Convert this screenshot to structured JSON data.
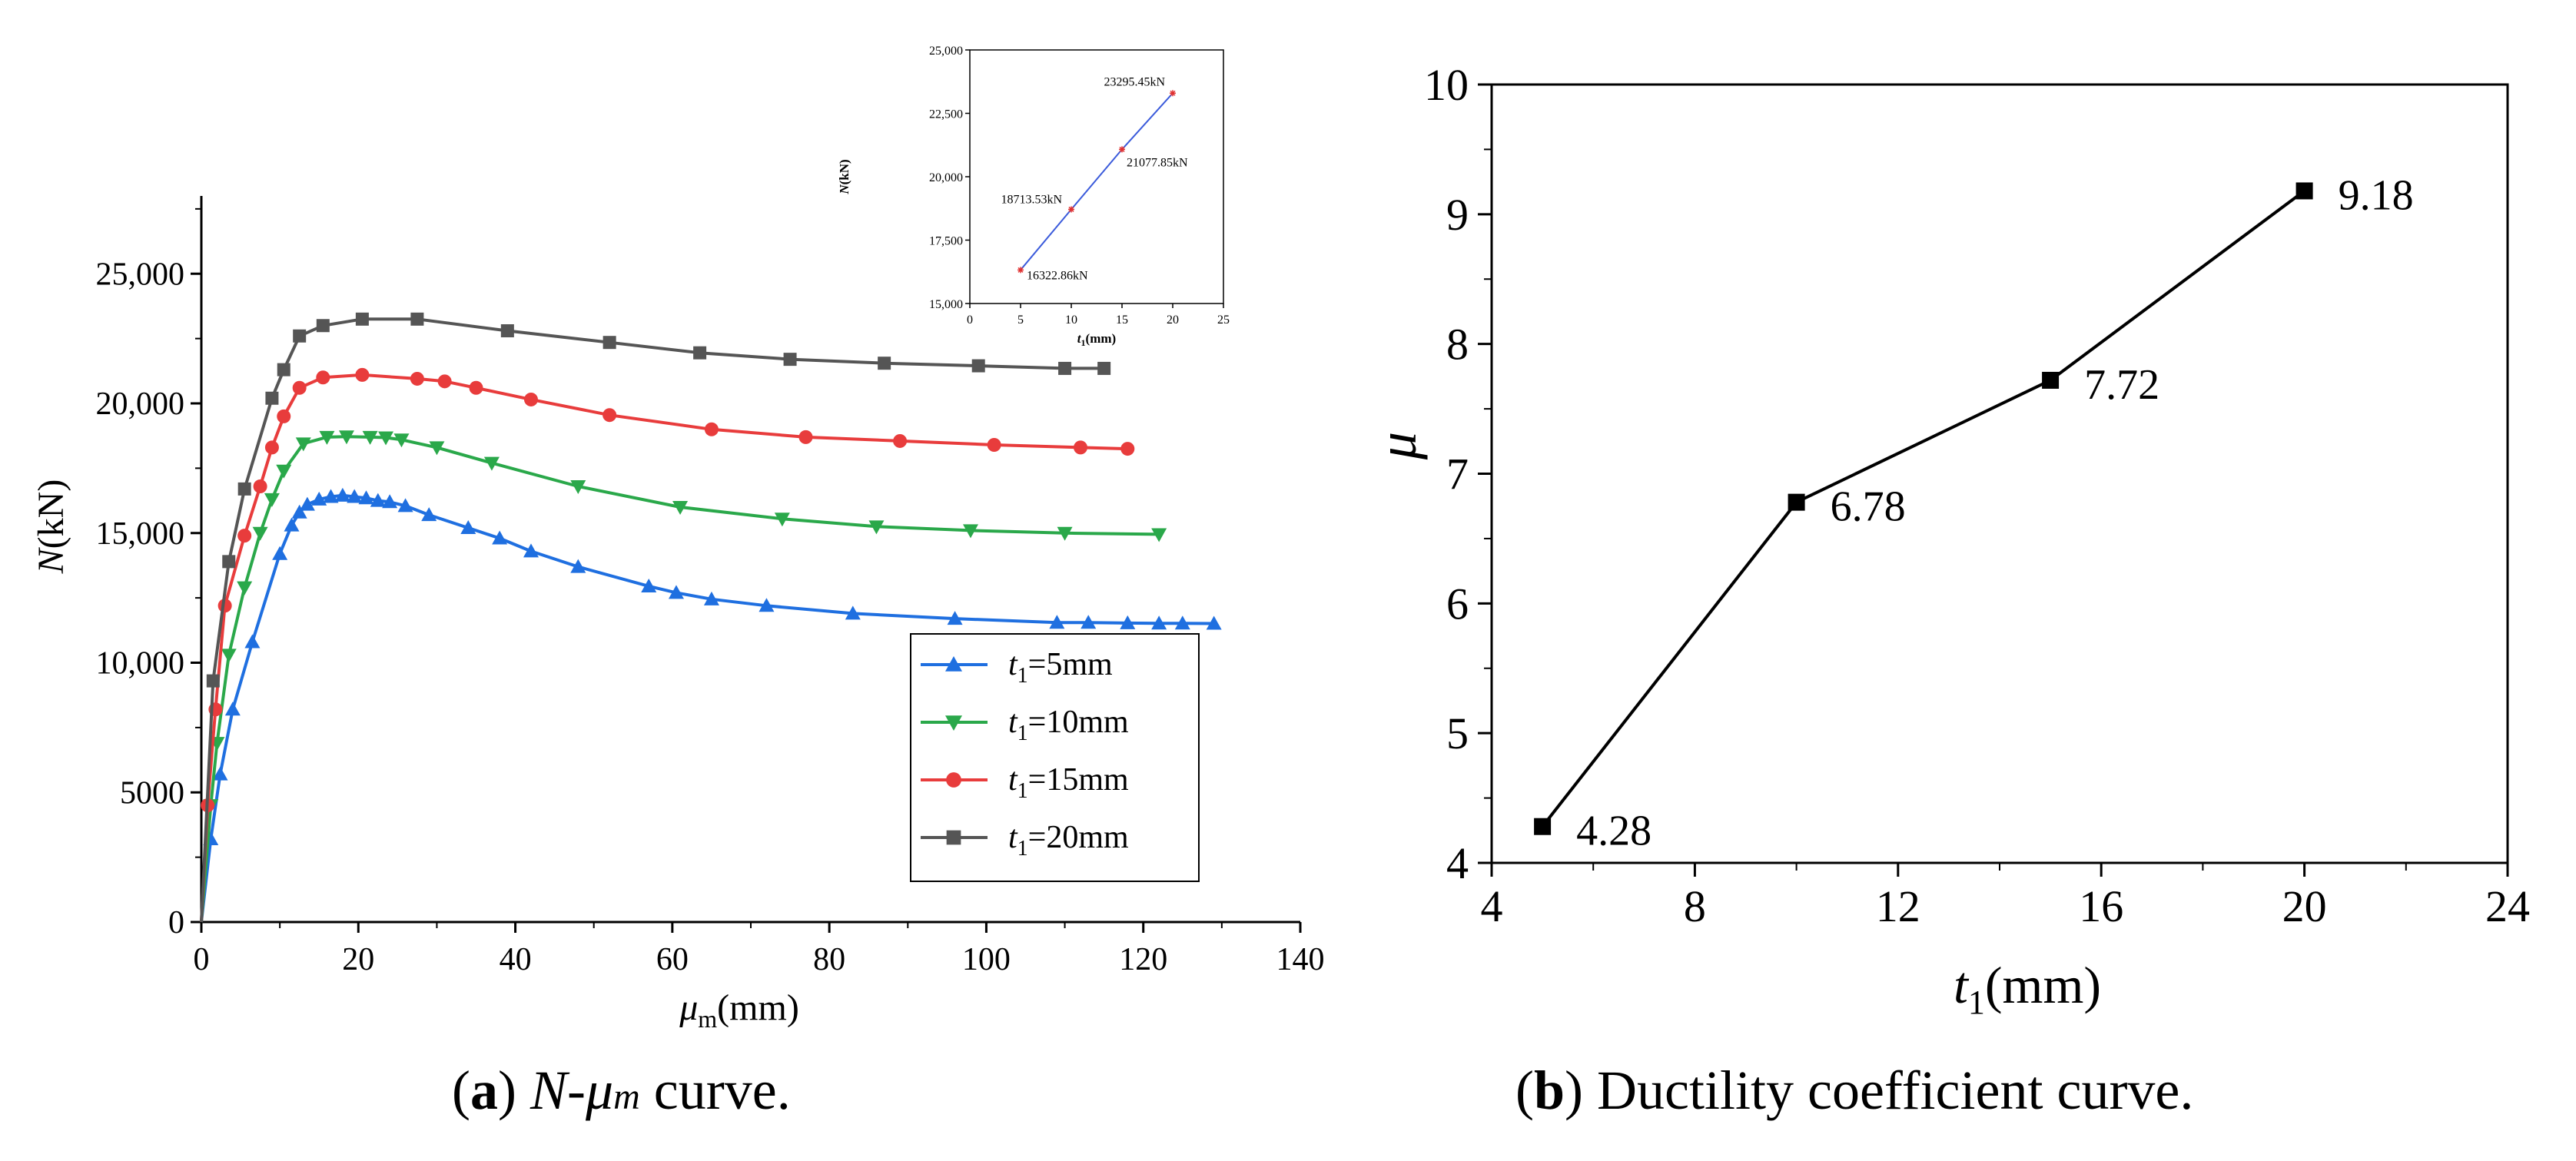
{
  "chart_data": [
    {
      "id": "a",
      "type": "line",
      "title": "",
      "xlabel_main": "μ",
      "xlabel_sub": "m",
      "xlabel_unit": "(mm)",
      "ylabel_main": "N",
      "ylabel_unit": "(kN)",
      "xlim": [
        0,
        140
      ],
      "ylim": [
        0,
        28000
      ],
      "xticks": [
        "0",
        "20",
        "40",
        "60",
        "80",
        "100",
        "120",
        "140"
      ],
      "xtick_values": [
        0,
        20,
        40,
        60,
        80,
        100,
        120,
        140
      ],
      "yticks": [
        "0",
        "5000",
        "10,000",
        "15,000",
        "20,000",
        "25,000"
      ],
      "ytick_values": [
        0,
        5000,
        10000,
        15000,
        20000,
        25000
      ],
      "legend_position": "lower-right",
      "series": [
        {
          "name": "t1=5mm",
          "legend_main": "t",
          "legend_sub": "1",
          "legend_rest": "=5mm",
          "color": "#1f6fe0",
          "marker": "triangle-up",
          "points": [
            [
              0,
              0
            ],
            [
              1.2,
              3200
            ],
            [
              2.4,
              5700
            ],
            [
              4,
              8200
            ],
            [
              6.5,
              10800
            ],
            [
              10,
              14200
            ],
            [
              11.5,
              15300
            ],
            [
              12.5,
              15800
            ],
            [
              13.5,
              16100
            ],
            [
              15,
              16300
            ],
            [
              16.5,
              16400
            ],
            [
              18,
              16450
            ],
            [
              19.5,
              16400
            ],
            [
              21,
              16350
            ],
            [
              22.5,
              16250
            ],
            [
              24,
              16200
            ],
            [
              26,
              16050
            ],
            [
              29,
              15700
            ],
            [
              34,
              15200
            ],
            [
              38,
              14800
            ],
            [
              42,
              14300
            ],
            [
              48,
              13700
            ],
            [
              57,
              12950
            ],
            [
              60.5,
              12700
            ],
            [
              65,
              12450
            ],
            [
              72,
              12200
            ],
            [
              83,
              11900
            ],
            [
              96,
              11700
            ],
            [
              109,
              11550
            ],
            [
              113,
              11550
            ],
            [
              118,
              11530
            ],
            [
              122,
              11520
            ],
            [
              125,
              11520
            ],
            [
              129,
              11510
            ]
          ]
        },
        {
          "name": "t1=10mm",
          "legend_main": "t",
          "legend_sub": "1",
          "legend_rest": "=10mm",
          "color": "#2aa84a",
          "marker": "triangle-down",
          "points": [
            [
              0,
              0
            ],
            [
              1.2,
              4500
            ],
            [
              2,
              6900
            ],
            [
              3.5,
              10300
            ],
            [
              5.5,
              12900
            ],
            [
              7.5,
              15000
            ],
            [
              9,
              16300
            ],
            [
              10.5,
              17400
            ],
            [
              13,
              18450
            ],
            [
              16,
              18700
            ],
            [
              18.5,
              18720
            ],
            [
              21.5,
              18700
            ],
            [
              23.5,
              18680
            ],
            [
              25.5,
              18600
            ],
            [
              30,
              18300
            ],
            [
              37,
              17700
            ],
            [
              48,
              16800
            ],
            [
              61,
              16000
            ],
            [
              74,
              15550
            ],
            [
              86,
              15250
            ],
            [
              98,
              15100
            ],
            [
              110,
              15000
            ],
            [
              122,
              14950
            ]
          ]
        },
        {
          "name": "t1=15mm",
          "legend_main": "t",
          "legend_sub": "1",
          "legend_rest": "=15mm",
          "color": "#e83c3c",
          "marker": "circle",
          "points": [
            [
              0,
              0
            ],
            [
              0.8,
              4500
            ],
            [
              1.8,
              8200
            ],
            [
              3,
              12200
            ],
            [
              5.5,
              14900
            ],
            [
              7.5,
              16800
            ],
            [
              9,
              18300
            ],
            [
              10.5,
              19500
            ],
            [
              12.5,
              20600
            ],
            [
              15.5,
              21000
            ],
            [
              20.5,
              21100
            ],
            [
              27.5,
              20950
            ],
            [
              31,
              20850
            ],
            [
              35,
              20600
            ],
            [
              42,
              20150
            ],
            [
              52,
              19550
            ],
            [
              65,
              19000
            ],
            [
              77,
              18700
            ],
            [
              89,
              18550
            ],
            [
              101,
              18400
            ],
            [
              112,
              18300
            ],
            [
              118,
              18250
            ]
          ]
        },
        {
          "name": "t1=20mm",
          "legend_main": "t",
          "legend_sub": "1",
          "legend_rest": "=20mm",
          "color": "#555555",
          "marker": "square",
          "points": [
            [
              0,
              0
            ],
            [
              1.5,
              9300
            ],
            [
              3.5,
              13900
            ],
            [
              5.5,
              16700
            ],
            [
              9,
              20200
            ],
            [
              10.5,
              21300
            ],
            [
              12.5,
              22600
            ],
            [
              15.5,
              23000
            ],
            [
              20.5,
              23250
            ],
            [
              27.5,
              23250
            ],
            [
              39,
              22800
            ],
            [
              52,
              22350
            ],
            [
              63.5,
              21950
            ],
            [
              75,
              21700
            ],
            [
              87,
              21550
            ],
            [
              99,
              21450
            ],
            [
              110,
              21350
            ],
            [
              115,
              21350
            ]
          ]
        }
      ]
    },
    {
      "id": "a-inset",
      "type": "line",
      "xlabel_main": "t",
      "xlabel_sub": "1",
      "xlabel_unit": "(mm)",
      "ylabel_main": "N",
      "ylabel_unit": "(kN)",
      "xlim": [
        0,
        25
      ],
      "ylim": [
        15000,
        25000
      ],
      "xticks": [
        "0",
        "5",
        "10",
        "15",
        "20",
        "25"
      ],
      "xtick_values": [
        0,
        5,
        10,
        15,
        20,
        25
      ],
      "yticks": [
        "15,000",
        "17,500",
        "20,000",
        "22,500",
        "25,000"
      ],
      "ytick_values": [
        15000,
        17500,
        20000,
        22500,
        25000
      ],
      "line_color": "#3b5bdb",
      "marker_color": "#e03131",
      "x": [
        5,
        10,
        15,
        20
      ],
      "y": [
        16322.86,
        18713.53,
        21077.85,
        23295.45
      ],
      "labels": [
        "16322.86kN",
        "18713.53kN",
        "21077.85kN",
        "23295.45kN"
      ]
    },
    {
      "id": "b",
      "type": "line",
      "xlabel_main": "t",
      "xlabel_sub": "1",
      "xlabel_unit": "(mm)",
      "ylabel": "μ",
      "xlim": [
        4,
        24
      ],
      "ylim": [
        4,
        10
      ],
      "xticks": [
        "4",
        "8",
        "12",
        "16",
        "20",
        "24"
      ],
      "xtick_values": [
        4,
        8,
        12,
        16,
        20,
        24
      ],
      "yticks": [
        "4",
        "5",
        "6",
        "7",
        "8",
        "9",
        "10"
      ],
      "ytick_values": [
        4,
        5,
        6,
        7,
        8,
        9,
        10
      ],
      "x": [
        5,
        10,
        15,
        20
      ],
      "y": [
        4.28,
        6.78,
        7.72,
        9.18
      ],
      "labels": [
        "4.28",
        "6.78",
        "7.72",
        "9.18"
      ],
      "color": "#000000",
      "marker": "square"
    }
  ],
  "captions": {
    "a": {
      "letter": "a",
      "n": "N",
      "mu": "μ",
      "sub": "m",
      "rest": " curve."
    },
    "b": {
      "letter": "b",
      "text": " Ductility coefficient curve."
    }
  }
}
